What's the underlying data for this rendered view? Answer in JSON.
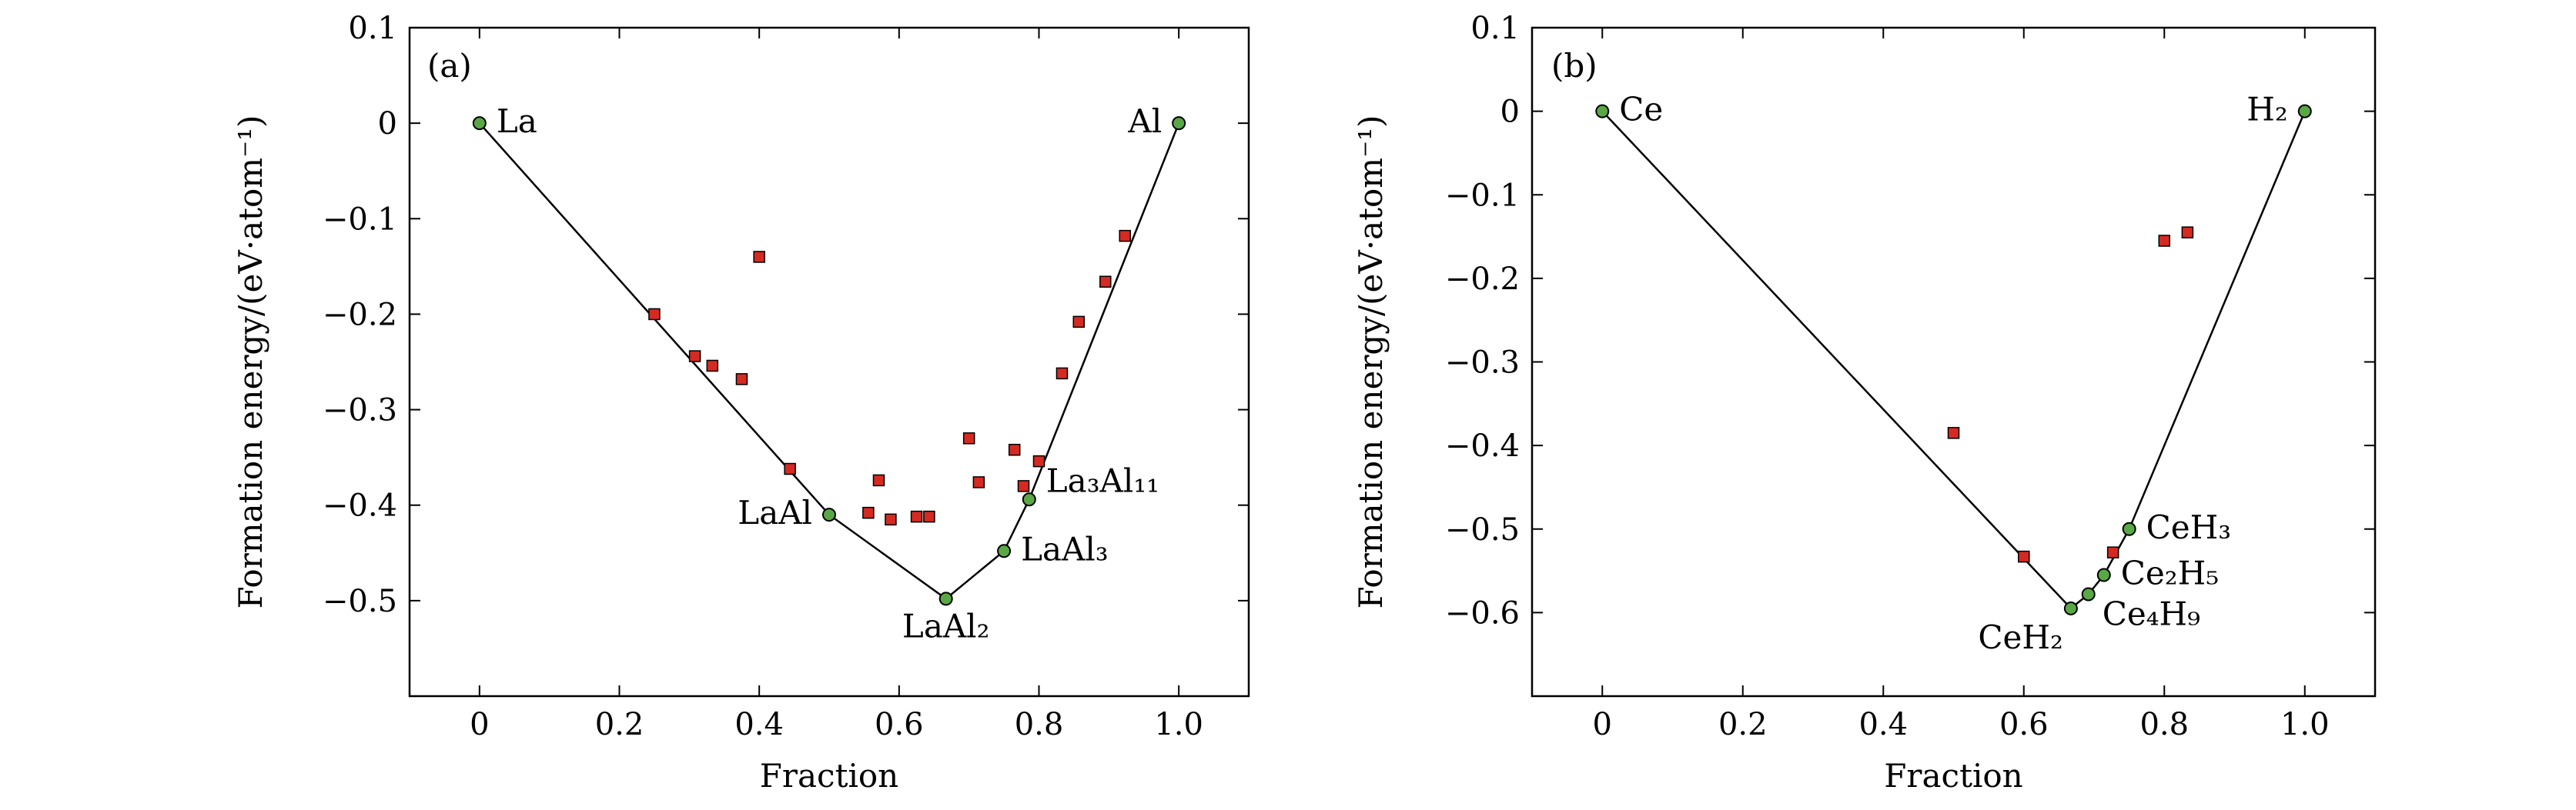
{
  "chart_data": [
    {
      "type": "scatter",
      "panel_label": "(a)",
      "xlabel": "Fraction",
      "ylabel": "Formation energy/(eV·atom⁻¹)",
      "xlim": [
        -0.1,
        1.1
      ],
      "ylim": [
        -0.6,
        0.1
      ],
      "xticks": [
        0,
        0.2,
        0.4,
        0.6,
        0.8,
        1.0
      ],
      "xtick_labels": [
        "0",
        "0.2",
        "0.4",
        "0.6",
        "0.8",
        "1.0"
      ],
      "yticks": [
        0.1,
        0,
        -0.1,
        -0.2,
        -0.3,
        -0.4,
        -0.5
      ],
      "ytick_labels": [
        "0.1",
        "0",
        "−0.1",
        "−0.2",
        "−0.3",
        "−0.4",
        "−0.5"
      ],
      "hull": [
        {
          "x": 0,
          "y": 0,
          "label": "La",
          "pos": "right"
        },
        {
          "x": 0.5,
          "y": -0.41,
          "label": "LaAl",
          "pos": "left"
        },
        {
          "x": 0.667,
          "y": -0.498,
          "label": "LaAl₂",
          "pos": "below"
        },
        {
          "x": 0.75,
          "y": -0.448,
          "label": "LaAl₃",
          "pos": "right"
        },
        {
          "x": 0.786,
          "y": -0.394,
          "label": "La₃Al₁₁",
          "pos": "right-up"
        },
        {
          "x": 1.0,
          "y": 0,
          "label": "Al",
          "pos": "left"
        }
      ],
      "unstable": [
        {
          "x": 0.25,
          "y": -0.2
        },
        {
          "x": 0.4,
          "y": -0.14
        },
        {
          "x": 0.308,
          "y": -0.244
        },
        {
          "x": 0.333,
          "y": -0.254
        },
        {
          "x": 0.375,
          "y": -0.268
        },
        {
          "x": 0.444,
          "y": -0.362
        },
        {
          "x": 0.556,
          "y": -0.408
        },
        {
          "x": 0.571,
          "y": -0.374
        },
        {
          "x": 0.588,
          "y": -0.415
        },
        {
          "x": 0.625,
          "y": -0.412
        },
        {
          "x": 0.643,
          "y": -0.412
        },
        {
          "x": 0.7,
          "y": -0.33
        },
        {
          "x": 0.714,
          "y": -0.376
        },
        {
          "x": 0.765,
          "y": -0.342
        },
        {
          "x": 0.778,
          "y": -0.38
        },
        {
          "x": 0.8,
          "y": -0.354
        },
        {
          "x": 0.833,
          "y": -0.262
        },
        {
          "x": 0.857,
          "y": -0.208
        },
        {
          "x": 0.895,
          "y": -0.166
        },
        {
          "x": 0.923,
          "y": -0.118
        }
      ]
    },
    {
      "type": "scatter",
      "panel_label": "(b)",
      "xlabel": "Fraction",
      "ylabel": "Formation energy/(eV·atom⁻¹)",
      "xlim": [
        -0.1,
        1.1
      ],
      "ylim": [
        -0.7,
        0.1
      ],
      "xticks": [
        0,
        0.2,
        0.4,
        0.6,
        0.8,
        1.0
      ],
      "xtick_labels": [
        "0",
        "0.2",
        "0.4",
        "0.6",
        "0.8",
        "1.0"
      ],
      "yticks": [
        0.1,
        0,
        -0.1,
        -0.2,
        -0.3,
        -0.4,
        -0.5,
        -0.6
      ],
      "ytick_labels": [
        "0.1",
        "0",
        "−0.1",
        "−0.2",
        "−0.3",
        "−0.4",
        "−0.5",
        "−0.6"
      ],
      "hull": [
        {
          "x": 0,
          "y": 0,
          "label": "Ce",
          "pos": "right"
        },
        {
          "x": 0.667,
          "y": -0.595,
          "label": "CeH₂",
          "pos": "below-left"
        },
        {
          "x": 0.692,
          "y": -0.578,
          "label": "Ce₄H₉",
          "pos": "below-right"
        },
        {
          "x": 0.714,
          "y": -0.555,
          "label": "Ce₂H₅",
          "pos": "right"
        },
        {
          "x": 0.75,
          "y": -0.5,
          "label": "CeH₃",
          "pos": "right"
        },
        {
          "x": 1.0,
          "y": 0,
          "label": "H₂",
          "pos": "left"
        }
      ],
      "unstable": [
        {
          "x": 0.5,
          "y": -0.385
        },
        {
          "x": 0.6,
          "y": -0.533
        },
        {
          "x": 0.727,
          "y": -0.528
        },
        {
          "x": 0.8,
          "y": -0.155
        },
        {
          "x": 0.833,
          "y": -0.145
        }
      ]
    }
  ]
}
